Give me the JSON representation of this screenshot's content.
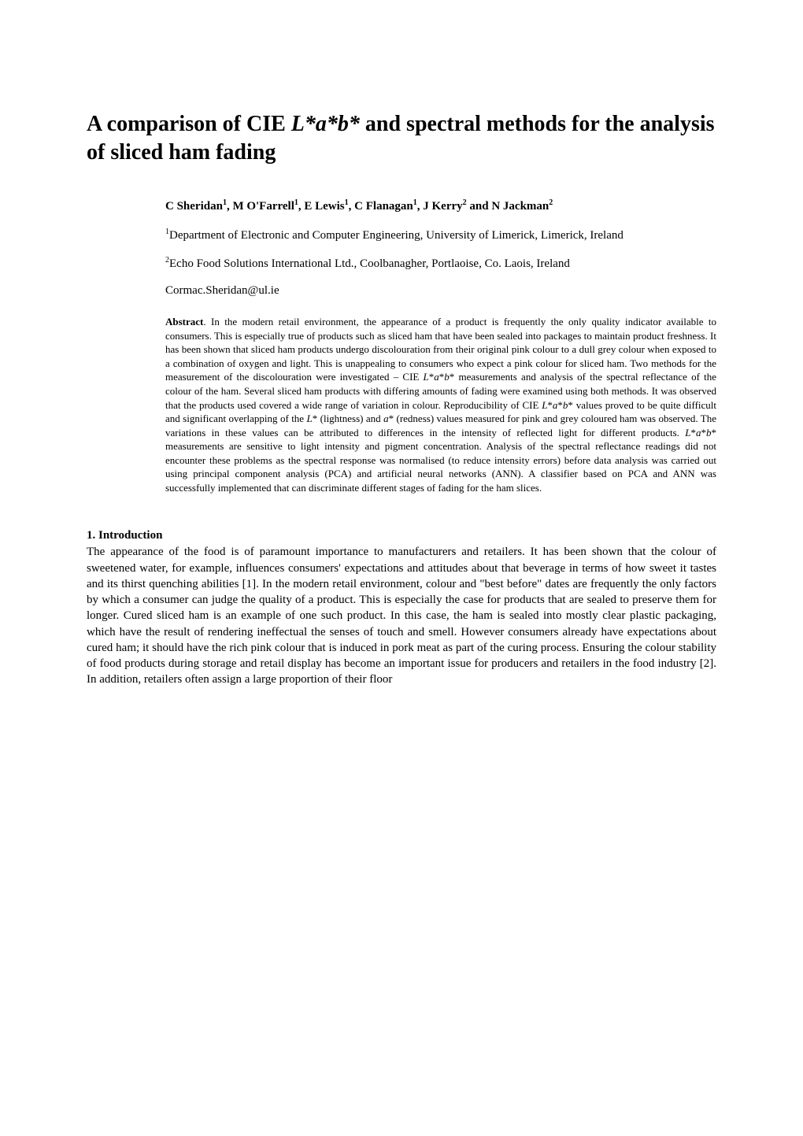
{
  "title": {
    "part1": "A comparison of CIE ",
    "italic": "L*a*b*",
    "part2": " and spectral methods for the analysis of sliced ham fading"
  },
  "authors": {
    "a1": "C Sheridan",
    "s1": "1",
    "a2": ", M O'Farrell",
    "s2": "1",
    "a3": ", E Lewis",
    "s3": "1",
    "a4": ", C Flanagan",
    "s4": "1",
    "a5": ", J Kerry",
    "s5": "2",
    "a6": " and N Jackman",
    "s6": "2"
  },
  "affiliations": {
    "aff1_sup": "1",
    "aff1": "Department of Electronic and Computer Engineering, University of Limerick, Limerick, Ireland",
    "aff2_sup": "2",
    "aff2": "Echo Food Solutions International Ltd., Coolbanagher, Portlaoise, Co. Laois, Ireland"
  },
  "email": "Cormac.Sheridan@ul.ie",
  "abstract": {
    "label": "Abstract",
    "p1": ". In the modern retail environment, the appearance of a product is frequently the only quality indicator available to consumers. This is especially true of products such as sliced ham that have been sealed into packages to maintain product freshness. It has been shown that sliced ham products undergo discolouration from their original pink colour to a dull grey colour when exposed to a combination of oxygen and light. This is unappealing to consumers who expect a pink colour for sliced ham. Two methods for the measurement of the discolouration were investigated – CIE ",
    "i1": "L",
    "p2": "*",
    "i2": "a",
    "p3": "*",
    "i3": "b",
    "p4": "* measurements and analysis of the spectral reflectance of the colour of the ham. Several sliced ham products with differing amounts of fading were examined using both methods. It was observed that the products used covered a wide range of variation in colour. Reproducibility of CIE ",
    "i4": "L",
    "p5": "*",
    "i5": "a",
    "p6": "*",
    "i6": "b",
    "p7": "* values proved to be quite difficult and significant overlapping of the ",
    "i7": "L",
    "p8": "* (lightness) and ",
    "i8": "a",
    "p9": "* (redness) values measured for pink and grey coloured ham was observed. The variations in these values can be attributed to differences in the intensity of reflected light for different products. ",
    "i9": "L",
    "p10": "*",
    "i10": "a",
    "p11": "*",
    "i11": "b",
    "p12": "* measurements are sensitive to light intensity and pigment concentration. Analysis of the spectral reflectance readings did not encounter these problems as the spectral response was normalised (to reduce intensity errors) before data analysis was carried out using principal component analysis (PCA) and artificial neural networks (ANN). A classifier based on PCA and ANN was successfully implemented that can discriminate different stages of fading for the ham slices."
  },
  "section": {
    "heading": "1.  Introduction",
    "body": "The appearance of the food is of paramount importance to manufacturers and retailers. It has been shown that the colour of sweetened water, for example, influences consumers' expectations and attitudes about that beverage in terms of how sweet it tastes and its thirst quenching abilities [1]. In the modern retail environment, colour and \"best before\" dates are frequently the only factors by which a consumer can judge the quality of a product. This is especially the case for products that are sealed to preserve them for longer. Cured sliced ham is an example of one such product. In this case, the ham is sealed into mostly clear plastic packaging, which have the result of rendering ineffectual the senses of touch and smell. However consumers already have expectations about cured ham; it should have the rich pink colour that is induced in pork meat as part of the curing process. Ensuring the colour stability of food products during storage and retail display has become an important issue for producers and retailers in the food industry [2]. In addition, retailers often assign a large proportion of their floor"
  }
}
